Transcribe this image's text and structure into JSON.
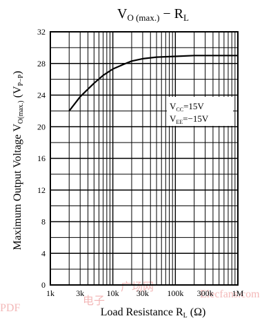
{
  "chart_data": {
    "type": "line",
    "title_main": "V",
    "title_sub": "O (max.)",
    "title_dash": " − R",
    "title_sub2": "L",
    "xlabel_main": "Load Resistance  R",
    "xlabel_sub": "L",
    "xlabel_unit": " (Ω)",
    "ylabel_main": "Maximum Output Voltage  V",
    "ylabel_sub": "O(max.)",
    "ylabel_unit_main": " (V",
    "ylabel_unit_sub": "P−P",
    "ylabel_unit_close": ")",
    "x_scale": "log",
    "xlim": [
      1000,
      1000000
    ],
    "ylim": [
      0,
      32
    ],
    "grid": true,
    "x_ticks": [
      {
        "value": 1000,
        "label": "1k"
      },
      {
        "value": 3000,
        "label": "3k"
      },
      {
        "value": 10000,
        "label": "10k"
      },
      {
        "value": 30000,
        "label": "30k"
      },
      {
        "value": 100000,
        "label": "100k"
      },
      {
        "value": 300000,
        "label": "300k"
      },
      {
        "value": 1000000,
        "label": "1M"
      }
    ],
    "y_ticks": [
      {
        "value": 0,
        "label": "0"
      },
      {
        "value": 4,
        "label": "4"
      },
      {
        "value": 8,
        "label": "8"
      },
      {
        "value": 12,
        "label": "12"
      },
      {
        "value": 16,
        "label": "16"
      },
      {
        "value": 20,
        "label": "20"
      },
      {
        "value": 24,
        "label": "24"
      },
      {
        "value": 28,
        "label": "28"
      },
      {
        "value": 32,
        "label": "32"
      }
    ],
    "series": [
      {
        "x": [
          2000,
          3000,
          5000,
          7000,
          10000,
          15000,
          20000,
          30000,
          50000,
          100000,
          200000,
          500000,
          1000000
        ],
        "y": [
          22.0,
          23.8,
          25.5,
          26.5,
          27.3,
          27.9,
          28.3,
          28.6,
          28.8,
          28.9,
          29.0,
          29.0,
          29.0
        ],
        "color": "#000000"
      }
    ],
    "annotations": [
      {
        "main": "V",
        "sub": "CC",
        "rest": "=15V"
      },
      {
        "main": "V",
        "sub": "EE",
        "rest": "=−15V"
      }
    ]
  },
  "watermark": [
    "PDF",
    "电子",
    "广场网",
    "Elecfans.com"
  ]
}
